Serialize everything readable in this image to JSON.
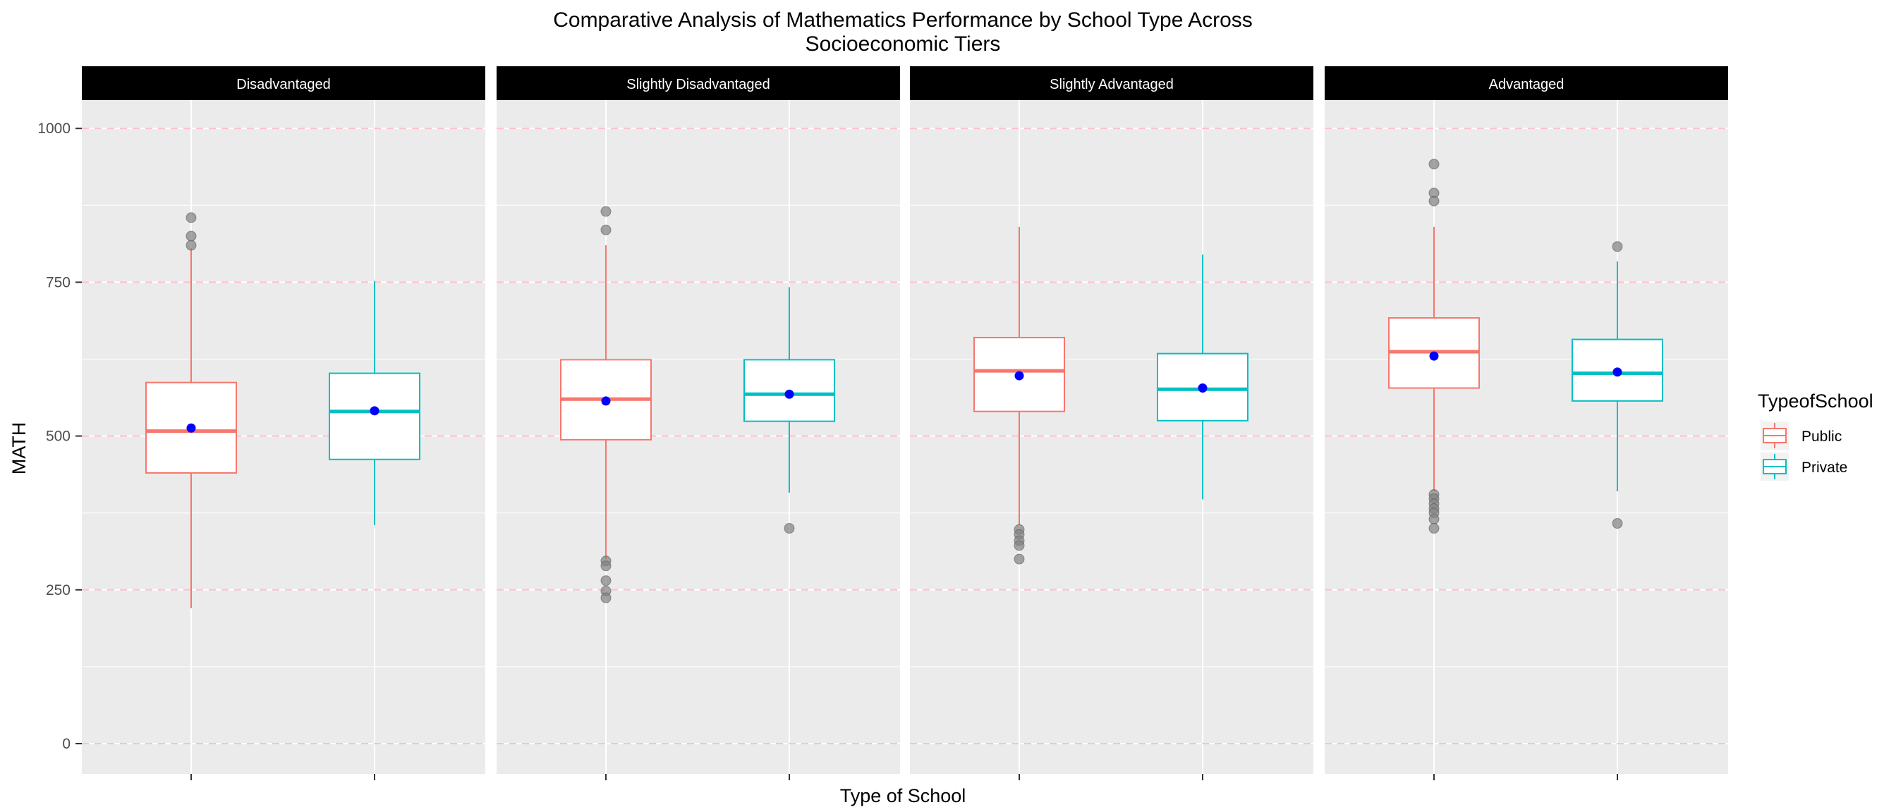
{
  "chart_data": {
    "type": "boxplot",
    "title_lines": [
      "Comparative Analysis of Mathematics Performance by School Type Across",
      "Socioeconomic Tiers"
    ],
    "xlabel": "Type of School",
    "ylabel": "MATH",
    "ylim": [
      -95,
      1085
    ],
    "y_ticks": [
      0,
      250,
      500,
      750,
      1000
    ],
    "reference_lines": [
      0,
      250,
      500,
      750,
      1000
    ],
    "grid": true,
    "legend": {
      "title": "TypeofSchool",
      "position": "right",
      "entries": [
        {
          "label": "Public",
          "color": "#F8766D"
        },
        {
          "label": "Private",
          "color": "#00BFC4"
        }
      ]
    },
    "colors": {
      "public": "#F8766D",
      "private": "#00BFC4",
      "mean_point": "#0000FF",
      "outlier": "#808080",
      "panel_background": "#EBEBEB",
      "strip_background": "#000000",
      "reference_line": "#FFC0CB"
    },
    "facets": [
      {
        "label": "Disadvantaged",
        "boxes": [
          {
            "group": "Public",
            "whisker_low": 220,
            "q1": 440,
            "median": 508,
            "q3": 587,
            "whisker_high": 805,
            "mean": 513,
            "outliers": [
              810,
              825,
              855
            ]
          },
          {
            "group": "Private",
            "whisker_low": 355,
            "q1": 462,
            "median": 540,
            "q3": 602,
            "whisker_high": 752,
            "mean": 541,
            "outliers": []
          }
        ]
      },
      {
        "label": "Slightly Disadvantaged",
        "boxes": [
          {
            "group": "Public",
            "whisker_low": 300,
            "q1": 494,
            "median": 560,
            "q3": 624,
            "whisker_high": 810,
            "mean": 557,
            "outliers": [
              835,
              865,
              297,
              289,
              265,
              248,
              237
            ]
          },
          {
            "group": "Private",
            "whisker_low": 408,
            "q1": 524,
            "median": 568,
            "q3": 624,
            "whisker_high": 742,
            "mean": 568,
            "outliers": [
              350
            ]
          }
        ]
      },
      {
        "label": "Slightly Advantaged",
        "boxes": [
          {
            "group": "Public",
            "whisker_low": 355,
            "q1": 540,
            "median": 606,
            "q3": 660,
            "whisker_high": 840,
            "mean": 598,
            "outliers": [
              348,
              340,
              330,
              322,
              300
            ]
          },
          {
            "group": "Private",
            "whisker_low": 397,
            "q1": 525,
            "median": 576,
            "q3": 634,
            "whisker_high": 795,
            "mean": 578,
            "outliers": []
          }
        ]
      },
      {
        "label": "Advantaged",
        "boxes": [
          {
            "group": "Public",
            "whisker_low": 410,
            "q1": 578,
            "median": 637,
            "q3": 692,
            "whisker_high": 840,
            "mean": 630,
            "outliers": [
              942,
              895,
              882,
              405,
              398,
              390,
              382,
              375,
              365,
              350
            ]
          },
          {
            "group": "Private",
            "whisker_low": 410,
            "q1": 557,
            "median": 602,
            "q3": 657,
            "whisker_high": 784,
            "mean": 604,
            "outliers": [
              808,
              358
            ]
          }
        ]
      }
    ]
  }
}
